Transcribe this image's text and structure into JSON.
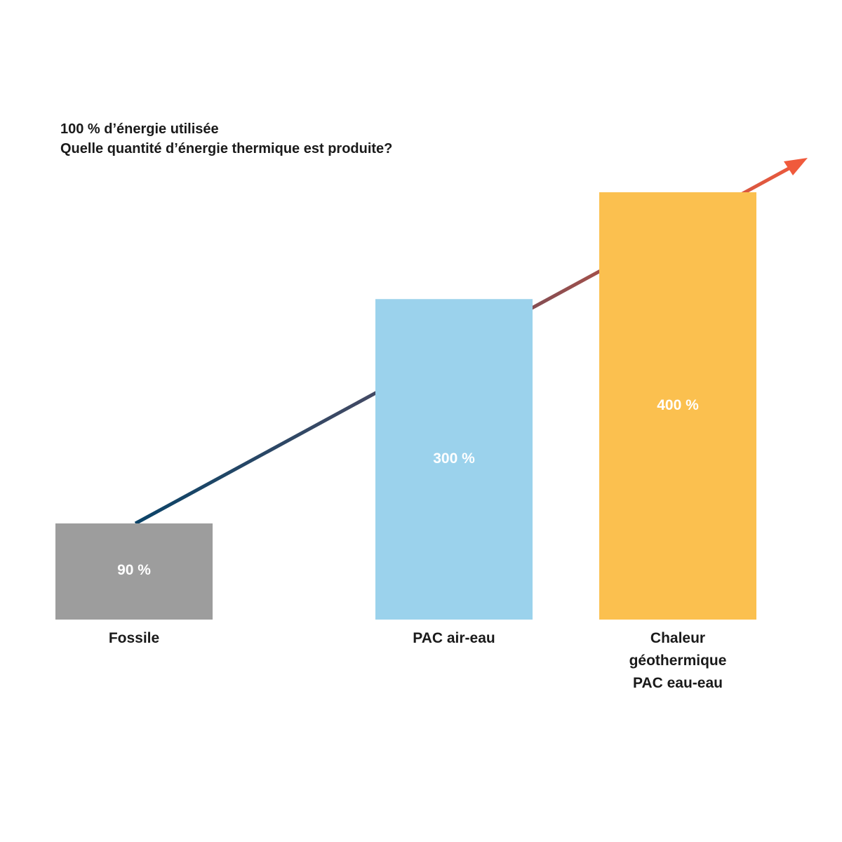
{
  "chart_data": {
    "type": "bar",
    "title": "100 % d’énergie utilisée",
    "subtitle": "Quelle quantité d’énergie thermique est produite?",
    "categories": [
      "Fossile",
      "PAC air-eau",
      "Chaleur\ngéothermique\nPAC eau-eau"
    ],
    "values": [
      90,
      300,
      400
    ],
    "value_labels": [
      "90 %",
      "300 %",
      "400 %"
    ],
    "colors": [
      "#9d9d9d",
      "#9bd2ec",
      "#fbc04f"
    ]
  }
}
